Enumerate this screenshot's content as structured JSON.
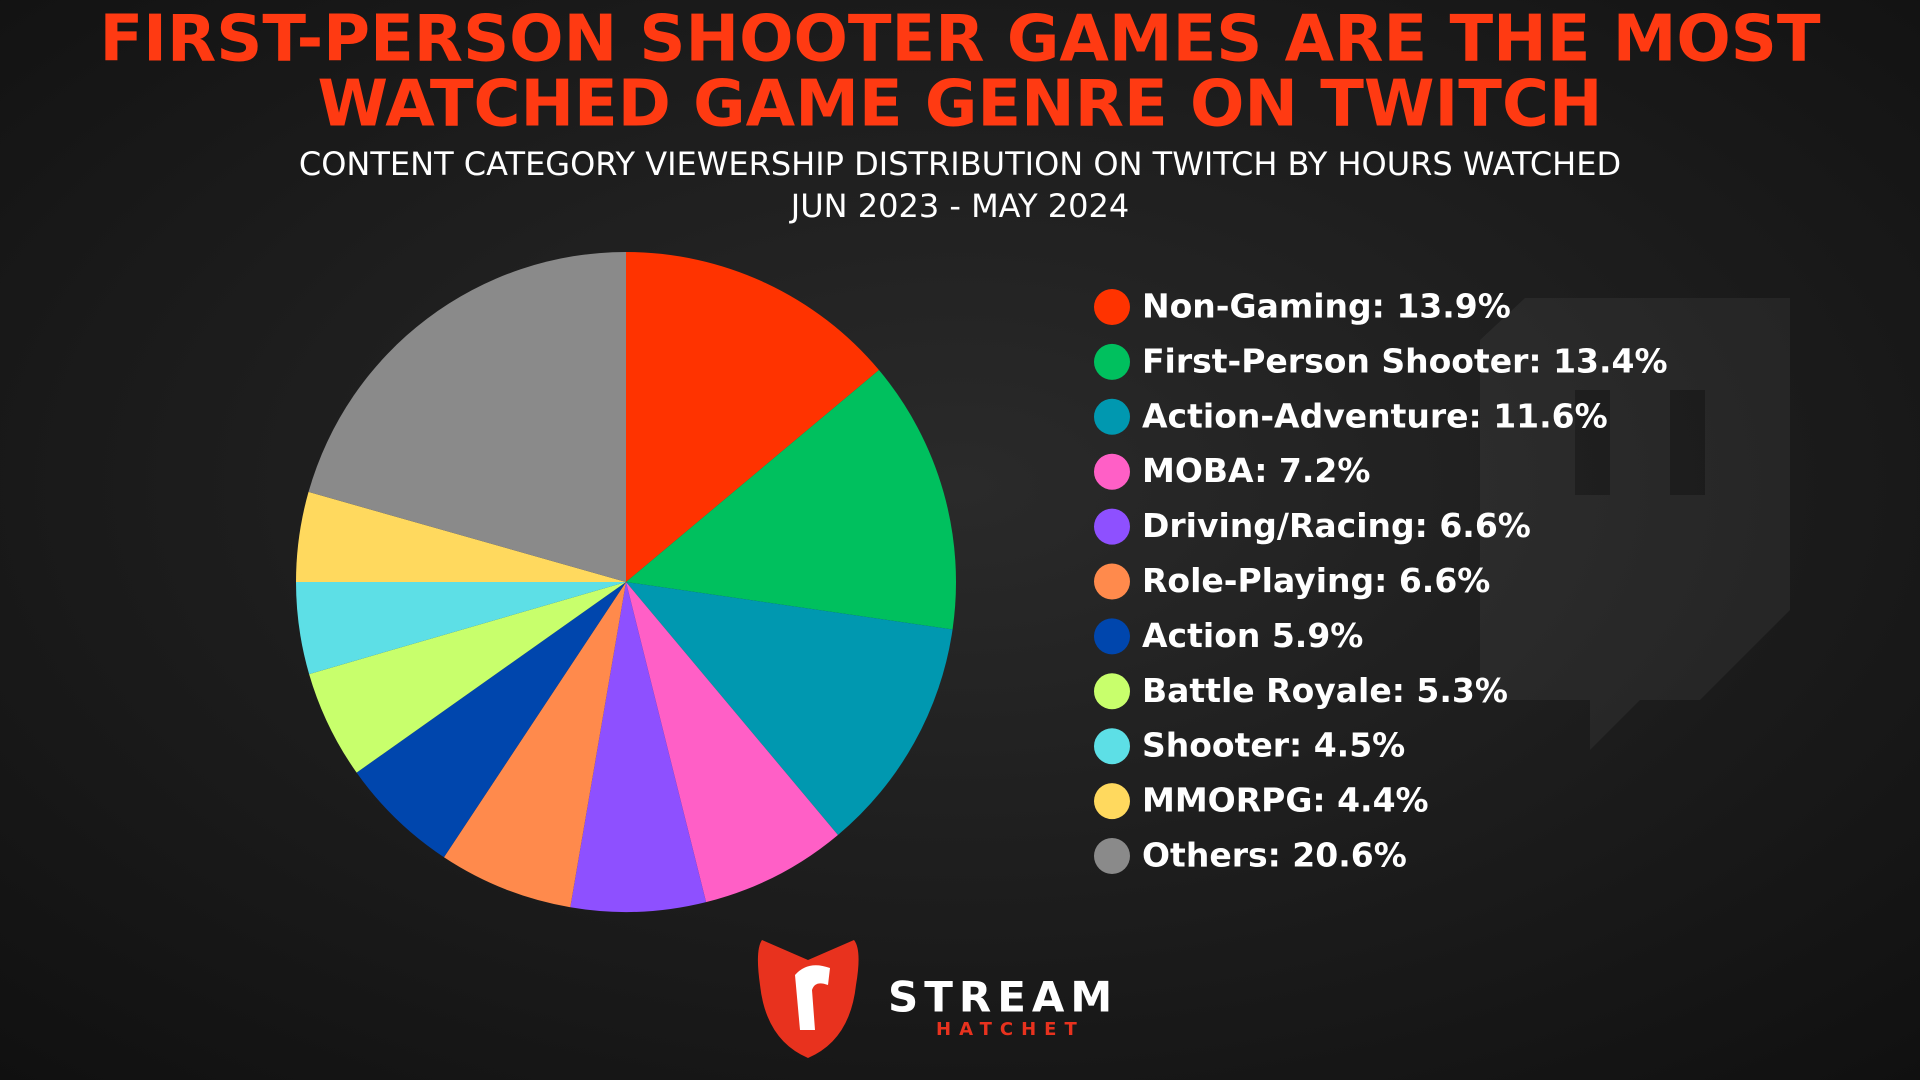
{
  "chart_data": {
    "type": "pie",
    "title": [
      "FIRST-PERSON SHOOTER GAMES ARE THE MOST",
      "WATCHED GAME GENRE ON TWITCH"
    ],
    "subtitle": [
      "CONTENT CATEGORY VIEWERSHIP DISTRIBUTION ON TWITCH BY HOURS WATCHED",
      "JUN 2023 - MAY 2024"
    ],
    "categories": [
      "Non-Gaming: 13.9%",
      "First-Person Shooter: 13.4%",
      "Action-Adventure: 11.6%",
      "MOBA: 7.2%",
      "Driving/Racing: 6.6%",
      "Role-Playing: 6.6%",
      "Action 5.9%",
      "Battle Royale: 5.3%",
      "Shooter: 4.5%",
      "MMORPG: 4.4%",
      "Others: 20.6%"
    ],
    "values": [
      13.9,
      13.4,
      11.6,
      7.2,
      6.6,
      6.6,
      5.9,
      5.3,
      4.5,
      4.4,
      20.6
    ],
    "colors": [
      "#ff3300",
      "#00c05e",
      "#0098b0",
      "#ff5fc6",
      "#8e50ff",
      "#ff8a4c",
      "#0046ad",
      "#c8ff6c",
      "#5ddfe6",
      "#ffd95e",
      "#8a8a8a"
    ],
    "legend": "right"
  },
  "branding": {
    "name": "STREAM",
    "subname": "HATCHET"
  }
}
